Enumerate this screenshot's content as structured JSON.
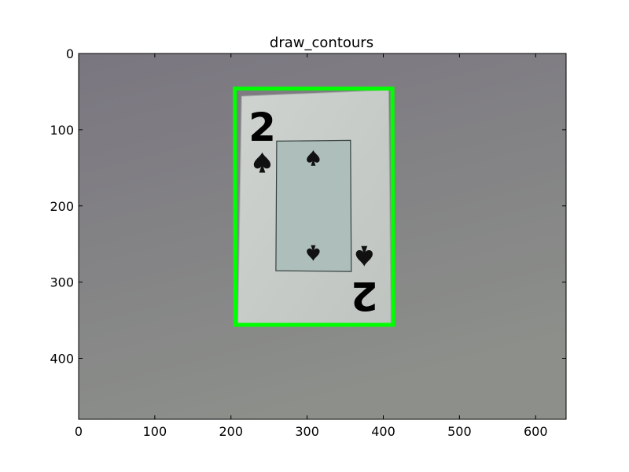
{
  "chart_data": {
    "type": "image",
    "title": "draw_contours",
    "xlabel": "",
    "ylabel": "",
    "xlim": [
      0,
      640
    ],
    "ylim": [
      480,
      0
    ],
    "x_ticks": [
      0,
      100,
      200,
      300,
      400,
      500,
      600
    ],
    "y_ticks": [
      0,
      100,
      200,
      300,
      400
    ],
    "grid": false,
    "image": {
      "subject": "playing card, two of spades",
      "card_rank": "2",
      "card_corners": [
        [
          214,
          56
        ],
        [
          407,
          48
        ],
        [
          410,
          354
        ],
        [
          209,
          357
        ]
      ],
      "inner_frame": [
        [
          260,
          115
        ],
        [
          357,
          114
        ],
        [
          358,
          286
        ],
        [
          259,
          285
        ]
      ],
      "center_pips": [
        [
          308,
          137
        ],
        [
          308,
          262
        ]
      ],
      "corner_pips": [
        [
          241,
          143
        ],
        [
          375,
          266
        ]
      ],
      "rank_positions": [
        [
          241,
          97
        ],
        [
          375,
          318
        ]
      ]
    },
    "contour": {
      "color": "#00ff00",
      "points": [
        [
          205,
          46
        ],
        [
          412,
          46
        ],
        [
          413,
          356
        ],
        [
          206,
          356
        ]
      ]
    },
    "colors": {
      "background_top": "#7a7680",
      "background_bottom": "#8c8f8a",
      "card": "#c8ccc8",
      "card_inner": "#aebeba",
      "ink": "#111111"
    }
  }
}
